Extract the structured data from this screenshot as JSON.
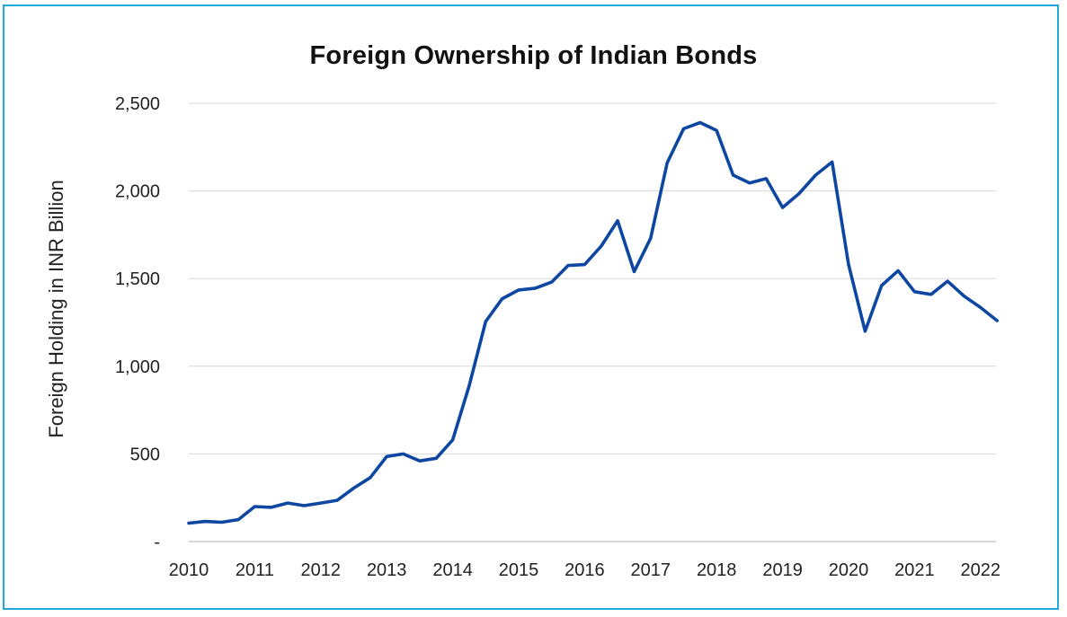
{
  "chart_data": {
    "type": "line",
    "title": "Foreign Ownership of Indian Bonds",
    "xlabel": "",
    "ylabel": "Foreign Holding in INR Billion",
    "xlim": [
      2010,
      2022.3
    ],
    "ylim": [
      0,
      2500
    ],
    "x_ticks": [
      2010,
      2011,
      2012,
      2013,
      2014,
      2015,
      2016,
      2017,
      2018,
      2019,
      2020,
      2021,
      2022
    ],
    "x_tick_labels": [
      "2010",
      "2011",
      "2012",
      "2013",
      "2014",
      "2015",
      "2016",
      "2017",
      "2018",
      "2019",
      "2020",
      "2021",
      "2022"
    ],
    "y_ticks": [
      0,
      500,
      1000,
      1500,
      2000,
      2500
    ],
    "y_tick_labels": [
      "-",
      "500",
      "1,000",
      "1,500",
      "2,000",
      "2,500"
    ],
    "grid": "horizontal",
    "line_color": "#0d47a1",
    "series": [
      {
        "x": [
          2010.0,
          2010.25,
          2010.5,
          2010.75,
          2011.0,
          2011.25,
          2011.5,
          2011.75,
          2012.0,
          2012.25,
          2012.5,
          2012.75,
          2013.0,
          2013.25,
          2013.5,
          2013.75,
          2014.0,
          2014.25,
          2014.5,
          2014.75,
          2015.0,
          2015.25,
          2015.5,
          2015.75,
          2016.0,
          2016.25,
          2016.5,
          2016.75,
          2017.0,
          2017.25,
          2017.5,
          2017.75,
          2018.0,
          2018.25,
          2018.5,
          2018.75,
          2019.0,
          2019.25,
          2019.5,
          2019.75,
          2020.0,
          2020.25,
          2020.5,
          2020.75,
          2021.0,
          2021.25,
          2021.5,
          2021.75,
          2022.0,
          2022.25
        ],
        "values": [
          105,
          115,
          110,
          125,
          200,
          195,
          220,
          205,
          220,
          235,
          305,
          365,
          485,
          500,
          460,
          475,
          580,
          890,
          1255,
          1385,
          1435,
          1445,
          1480,
          1575,
          1580,
          1685,
          1830,
          1540,
          1730,
          2160,
          2355,
          2390,
          2345,
          2090,
          2045,
          2070,
          1905,
          1985,
          2090,
          2165,
          1580,
          1200,
          1460,
          1545,
          1425,
          1410,
          1485,
          1400,
          1335,
          1260
        ]
      }
    ]
  }
}
